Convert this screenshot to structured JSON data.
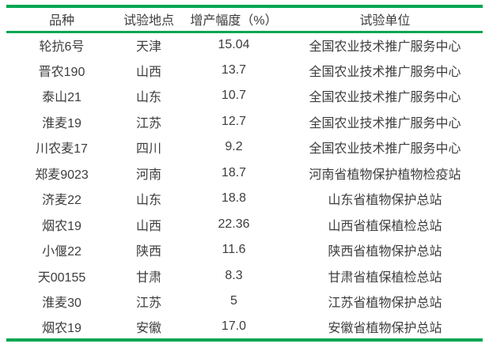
{
  "table": {
    "accent_color": "#00a651",
    "text_color": "#3d3d3d",
    "columns": [
      {
        "label": "品种"
      },
      {
        "label": "试验地点"
      },
      {
        "label": "增产幅度（%）"
      },
      {
        "label": "试验单位"
      }
    ],
    "rows": [
      [
        "轮抗6号",
        "天津",
        "15.04",
        "全国农业技术推广服务中心"
      ],
      [
        "晋农190",
        "山西",
        "13.7",
        "全国农业技术推广服务中心"
      ],
      [
        "泰山21",
        "山东",
        "10.7",
        "全国农业技术推广服务中心"
      ],
      [
        "淮麦19",
        "江苏",
        "12.7",
        "全国农业技术推广服务中心"
      ],
      [
        "川农麦17",
        "四川",
        "9.2",
        "全国农业技术推广服务中心"
      ],
      [
        "郑麦9023",
        "河南",
        "18.7",
        "河南省植物保护植物检疫站"
      ],
      [
        "济麦22",
        "山东",
        "18.8",
        "山东省植物保护总站"
      ],
      [
        "烟农19",
        "山西",
        "22.36",
        "山西省植保植检总站"
      ],
      [
        "小偃22",
        "陕西",
        "11.6",
        "陕西省植物保护总站"
      ],
      [
        "天00155",
        "甘肃",
        "8.3",
        "甘肃省植保植检总站"
      ],
      [
        "淮麦30",
        "江苏",
        "5",
        "江苏省植物保护总站"
      ],
      [
        "烟农19",
        "安徽",
        "17.0",
        "安徽省植物保护总站"
      ]
    ]
  }
}
